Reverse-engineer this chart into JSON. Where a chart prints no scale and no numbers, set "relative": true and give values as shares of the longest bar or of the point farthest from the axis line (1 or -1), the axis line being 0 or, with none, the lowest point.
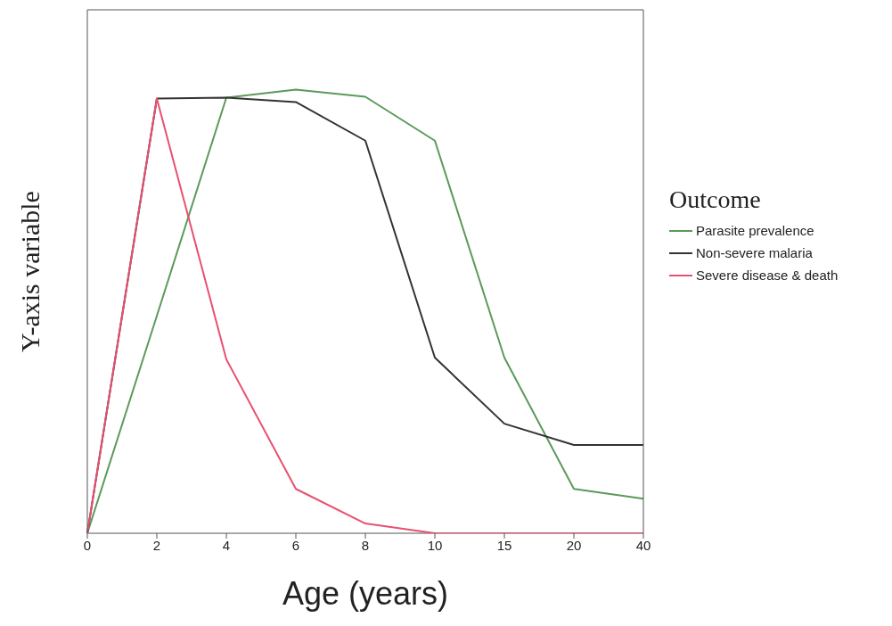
{
  "chart_data": {
    "type": "line",
    "xlabel": "Age (years)",
    "ylabel": "Y-axis variable",
    "legend_title": "Outcome",
    "legend": "right",
    "relative": true,
    "marker": "none",
    "categories": [
      "0",
      "2",
      "4",
      "6",
      "8",
      "10",
      "15",
      "20",
      "40"
    ],
    "series": [
      {
        "name": "Parasite prevalence",
        "color": "#5a9a5a",
        "values": [
          0,
          0.49,
          0.982,
          1,
          0.984,
          0.885,
          0.396,
          0.1,
          0.078
        ]
      },
      {
        "name": "Non-severe malaria",
        "color": "#333333",
        "values": [
          0,
          0.98,
          0.982,
          0.972,
          0.885,
          0.396,
          0.247,
          0.199,
          0.199
        ]
      },
      {
        "name": "Severe disease & death",
        "color": "#e8506e",
        "values": [
          0,
          0.98,
          0.392,
          0.1,
          0.022,
          0,
          0,
          0,
          0
        ]
      }
    ]
  }
}
